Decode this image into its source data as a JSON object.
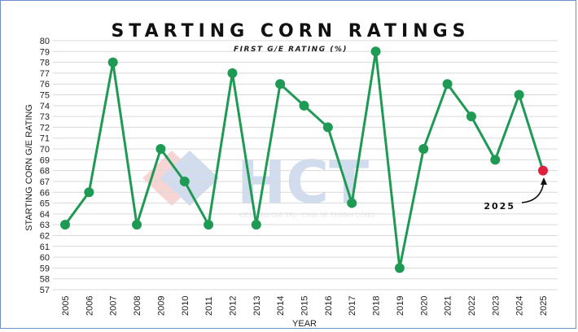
{
  "chart_data": {
    "type": "line",
    "title": "STARTING CORN RATINGS",
    "subtitle": "FIRST G/E RATING (%)",
    "xlabel": "YEAR",
    "ylabel": "STARTING CORN G/E RATING",
    "ylim": [
      57,
      80
    ],
    "yticks": [
      "57",
      "58",
      "59",
      "60",
      "61",
      "62",
      "63",
      "64",
      "65",
      "66",
      "67",
      "68",
      "69",
      "70",
      "71",
      "72",
      "73",
      "74",
      "75",
      "76",
      "77",
      "78",
      "79",
      "80"
    ],
    "categories": [
      "2005",
      "2006",
      "2007",
      "2008",
      "2009",
      "2010",
      "2011",
      "2012",
      "2013",
      "2014",
      "2015",
      "2016",
      "2017",
      "2018",
      "2019",
      "2020",
      "2021",
      "2022",
      "2023",
      "2024",
      "2025"
    ],
    "series": [
      {
        "values": [
          63,
          66,
          78,
          63,
          70,
          67,
          63,
          77,
          63,
          76,
          74,
          72,
          65,
          79,
          59,
          70,
          76,
          73,
          69,
          75,
          68
        ]
      }
    ],
    "grid": true,
    "line_color": "#1f9a55",
    "highlight_color": "#e0203c",
    "highlight_index": 20,
    "annotation": "2025"
  },
  "watermark": {
    "logo_text": "HCT",
    "tagline": "KIẾN TẠO GIÁ TRỊ - CHIA SẺ THÀNH CÔNG"
  }
}
